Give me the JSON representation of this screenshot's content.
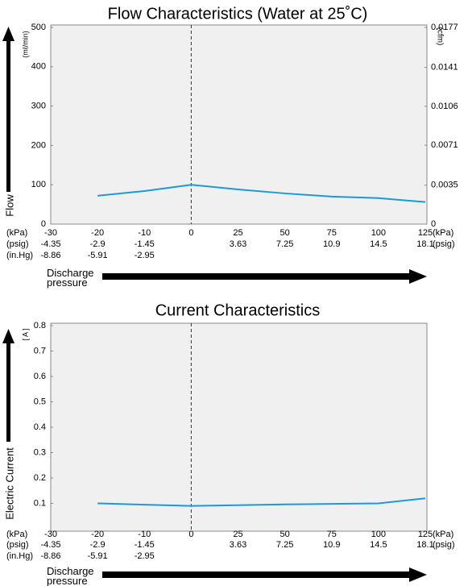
{
  "chart_data": [
    {
      "type": "line",
      "title": "Flow Characteristics (Water at 25˚C)",
      "y_label": "(mℓ/min)",
      "y_title": "Flow",
      "y2_label": "(cfm)",
      "x_label": "Discharge pressure",
      "x": [
        -20,
        -10,
        0,
        25,
        50,
        75,
        100,
        125
      ],
      "values": [
        72,
        84,
        100,
        88,
        78,
        70,
        66,
        56
      ],
      "color": "#1a9bd7",
      "xlim": [
        -30,
        125
      ],
      "xticks": [
        -30,
        -20,
        -10,
        0,
        25,
        50,
        75,
        100,
        125
      ],
      "psig_labels": [
        -4.35,
        -2.9,
        -1.45,
        null,
        3.63,
        7.25,
        10.9,
        14.5,
        18.1
      ],
      "inhg_labels": [
        -8.86,
        -5.91,
        -2.95
      ],
      "x_units_left": [
        "(kPa)",
        "(psig)",
        "(in.Hg)"
      ],
      "x_units_right": [
        "(kPa)",
        "(psig)"
      ],
      "ylim": [
        0,
        500
      ],
      "yticks": [
        0,
        100,
        200,
        300,
        400,
        500
      ],
      "y2lim": [
        0,
        0.0177
      ],
      "y2ticks": [
        0,
        0.0035,
        0.0071,
        0.0106,
        0.0141,
        0.0177
      ],
      "grid": false
    },
    {
      "type": "line",
      "title": "Current Characteristics",
      "y_label": "[ A ]",
      "y_title": "Electric Current",
      "x_label": "Discharge pressure",
      "x": [
        -20,
        -10,
        0,
        25,
        50,
        75,
        100,
        125
      ],
      "values": [
        0.1,
        0.095,
        0.09,
        0.093,
        0.096,
        0.098,
        0.1,
        0.12
      ],
      "color": "#1a9bd7",
      "xlim": [
        -30,
        125
      ],
      "xticks": [
        -30,
        -20,
        -10,
        0,
        25,
        50,
        75,
        100,
        125
      ],
      "psig_labels": [
        -4.35,
        -2.9,
        -1.45,
        null,
        3.63,
        7.25,
        10.9,
        14.5,
        18.1
      ],
      "inhg_labels": [
        -8.86,
        -5.91,
        -2.95
      ],
      "x_units_left": [
        "(kPa)",
        "(psig)",
        "(in.Hg)"
      ],
      "x_units_right": [
        "(kPa)",
        "(psig)"
      ],
      "ylim": [
        0,
        0.8
      ],
      "yticks": [
        0.1,
        0.2,
        0.3,
        0.4,
        0.5,
        0.6,
        0.7,
        0.8
      ],
      "grid": false
    }
  ]
}
